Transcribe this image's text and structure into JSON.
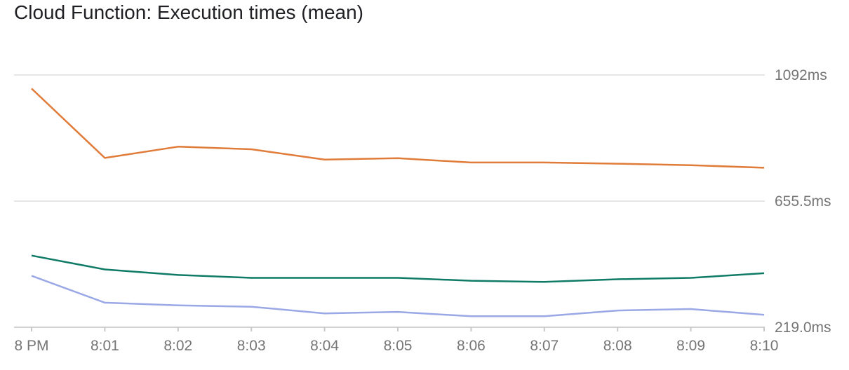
{
  "chart_data": {
    "type": "line",
    "title": "Cloud Function: Execution times (mean)",
    "xlabel": "",
    "ylabel": "",
    "categories": [
      "8 PM",
      "8:01",
      "8:02",
      "8:03",
      "8:04",
      "8:05",
      "8:06",
      "8:07",
      "8:08",
      "8:09",
      "8:10"
    ],
    "y_ticks": [
      {
        "value": 1092,
        "label": "1092ms"
      },
      {
        "value": 655.5,
        "label": "655.5ms"
      },
      {
        "value": 219.0,
        "label": "219.0ms"
      }
    ],
    "ylim": [
      219.0,
      1092
    ],
    "grid": true,
    "legend": "none",
    "series": [
      {
        "color": "#e07b39",
        "values": [
          1045,
          805,
          844,
          835,
          799,
          804,
          789,
          789,
          785,
          780,
          771
        ]
      },
      {
        "color": "#0f7a66",
        "values": [
          467,
          419,
          400,
          390,
          390,
          390,
          380,
          376,
          385,
          390,
          406
        ]
      },
      {
        "color": "#9aa8e6",
        "values": [
          397,
          304,
          295,
          290,
          267,
          272,
          257,
          257,
          277,
          282,
          262
        ]
      }
    ]
  }
}
